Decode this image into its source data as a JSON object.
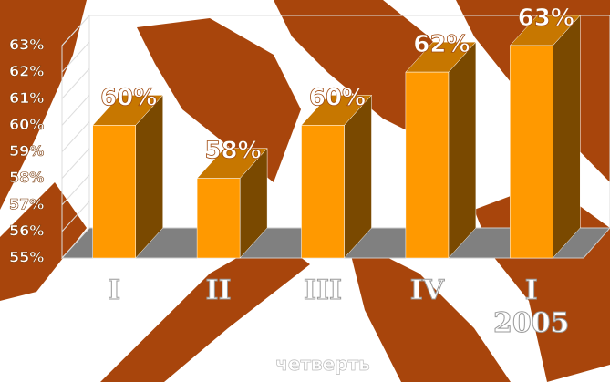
{
  "chart_data": {
    "type": "bar3d",
    "categories": [
      "I",
      "II",
      "III",
      "IV",
      "I\n2005"
    ],
    "values": [
      60,
      58,
      60,
      62,
      63
    ],
    "value_labels": [
      "60%",
      "58%",
      "60%",
      "62%",
      "63%"
    ],
    "color": "#ff9900",
    "ylim": [
      55,
      63
    ],
    "yticks": [
      {
        "value": 55,
        "label": "55%"
      },
      {
        "value": 56,
        "label": "56%"
      },
      {
        "value": 57,
        "label": "57%"
      },
      {
        "value": 58,
        "label": "58%"
      },
      {
        "value": 59,
        "label": "59%"
      },
      {
        "value": 60,
        "label": "60%"
      },
      {
        "value": 61,
        "label": "61%"
      },
      {
        "value": 62,
        "label": "62%"
      },
      {
        "value": 63,
        "label": "63%"
      }
    ],
    "x_label": "четверть"
  }
}
